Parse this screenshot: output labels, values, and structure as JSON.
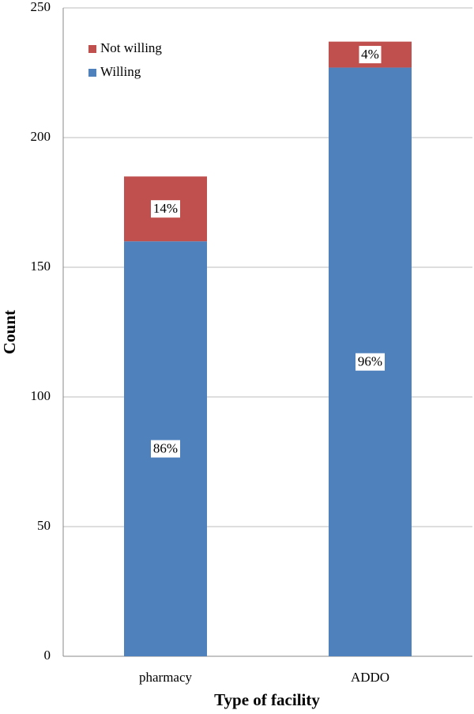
{
  "chart_data": {
    "type": "stacked-bar",
    "x_label": "Type of facility",
    "y_label": "Count",
    "categories": [
      "pharmacy",
      "ADDO"
    ],
    "series": [
      {
        "name": "Willing",
        "color": "#4f81bd",
        "values": [
          160,
          227
        ],
        "percent_labels": [
          "86%",
          "96%"
        ]
      },
      {
        "name": "Not willing",
        "color": "#c0504d",
        "values": [
          25,
          10
        ],
        "percent_labels": [
          "14%",
          "4%"
        ]
      }
    ],
    "ylim": [
      0,
      250
    ],
    "yticks": [
      0,
      50,
      100,
      150,
      200,
      250
    ],
    "grid": true,
    "legend": "top-left"
  }
}
